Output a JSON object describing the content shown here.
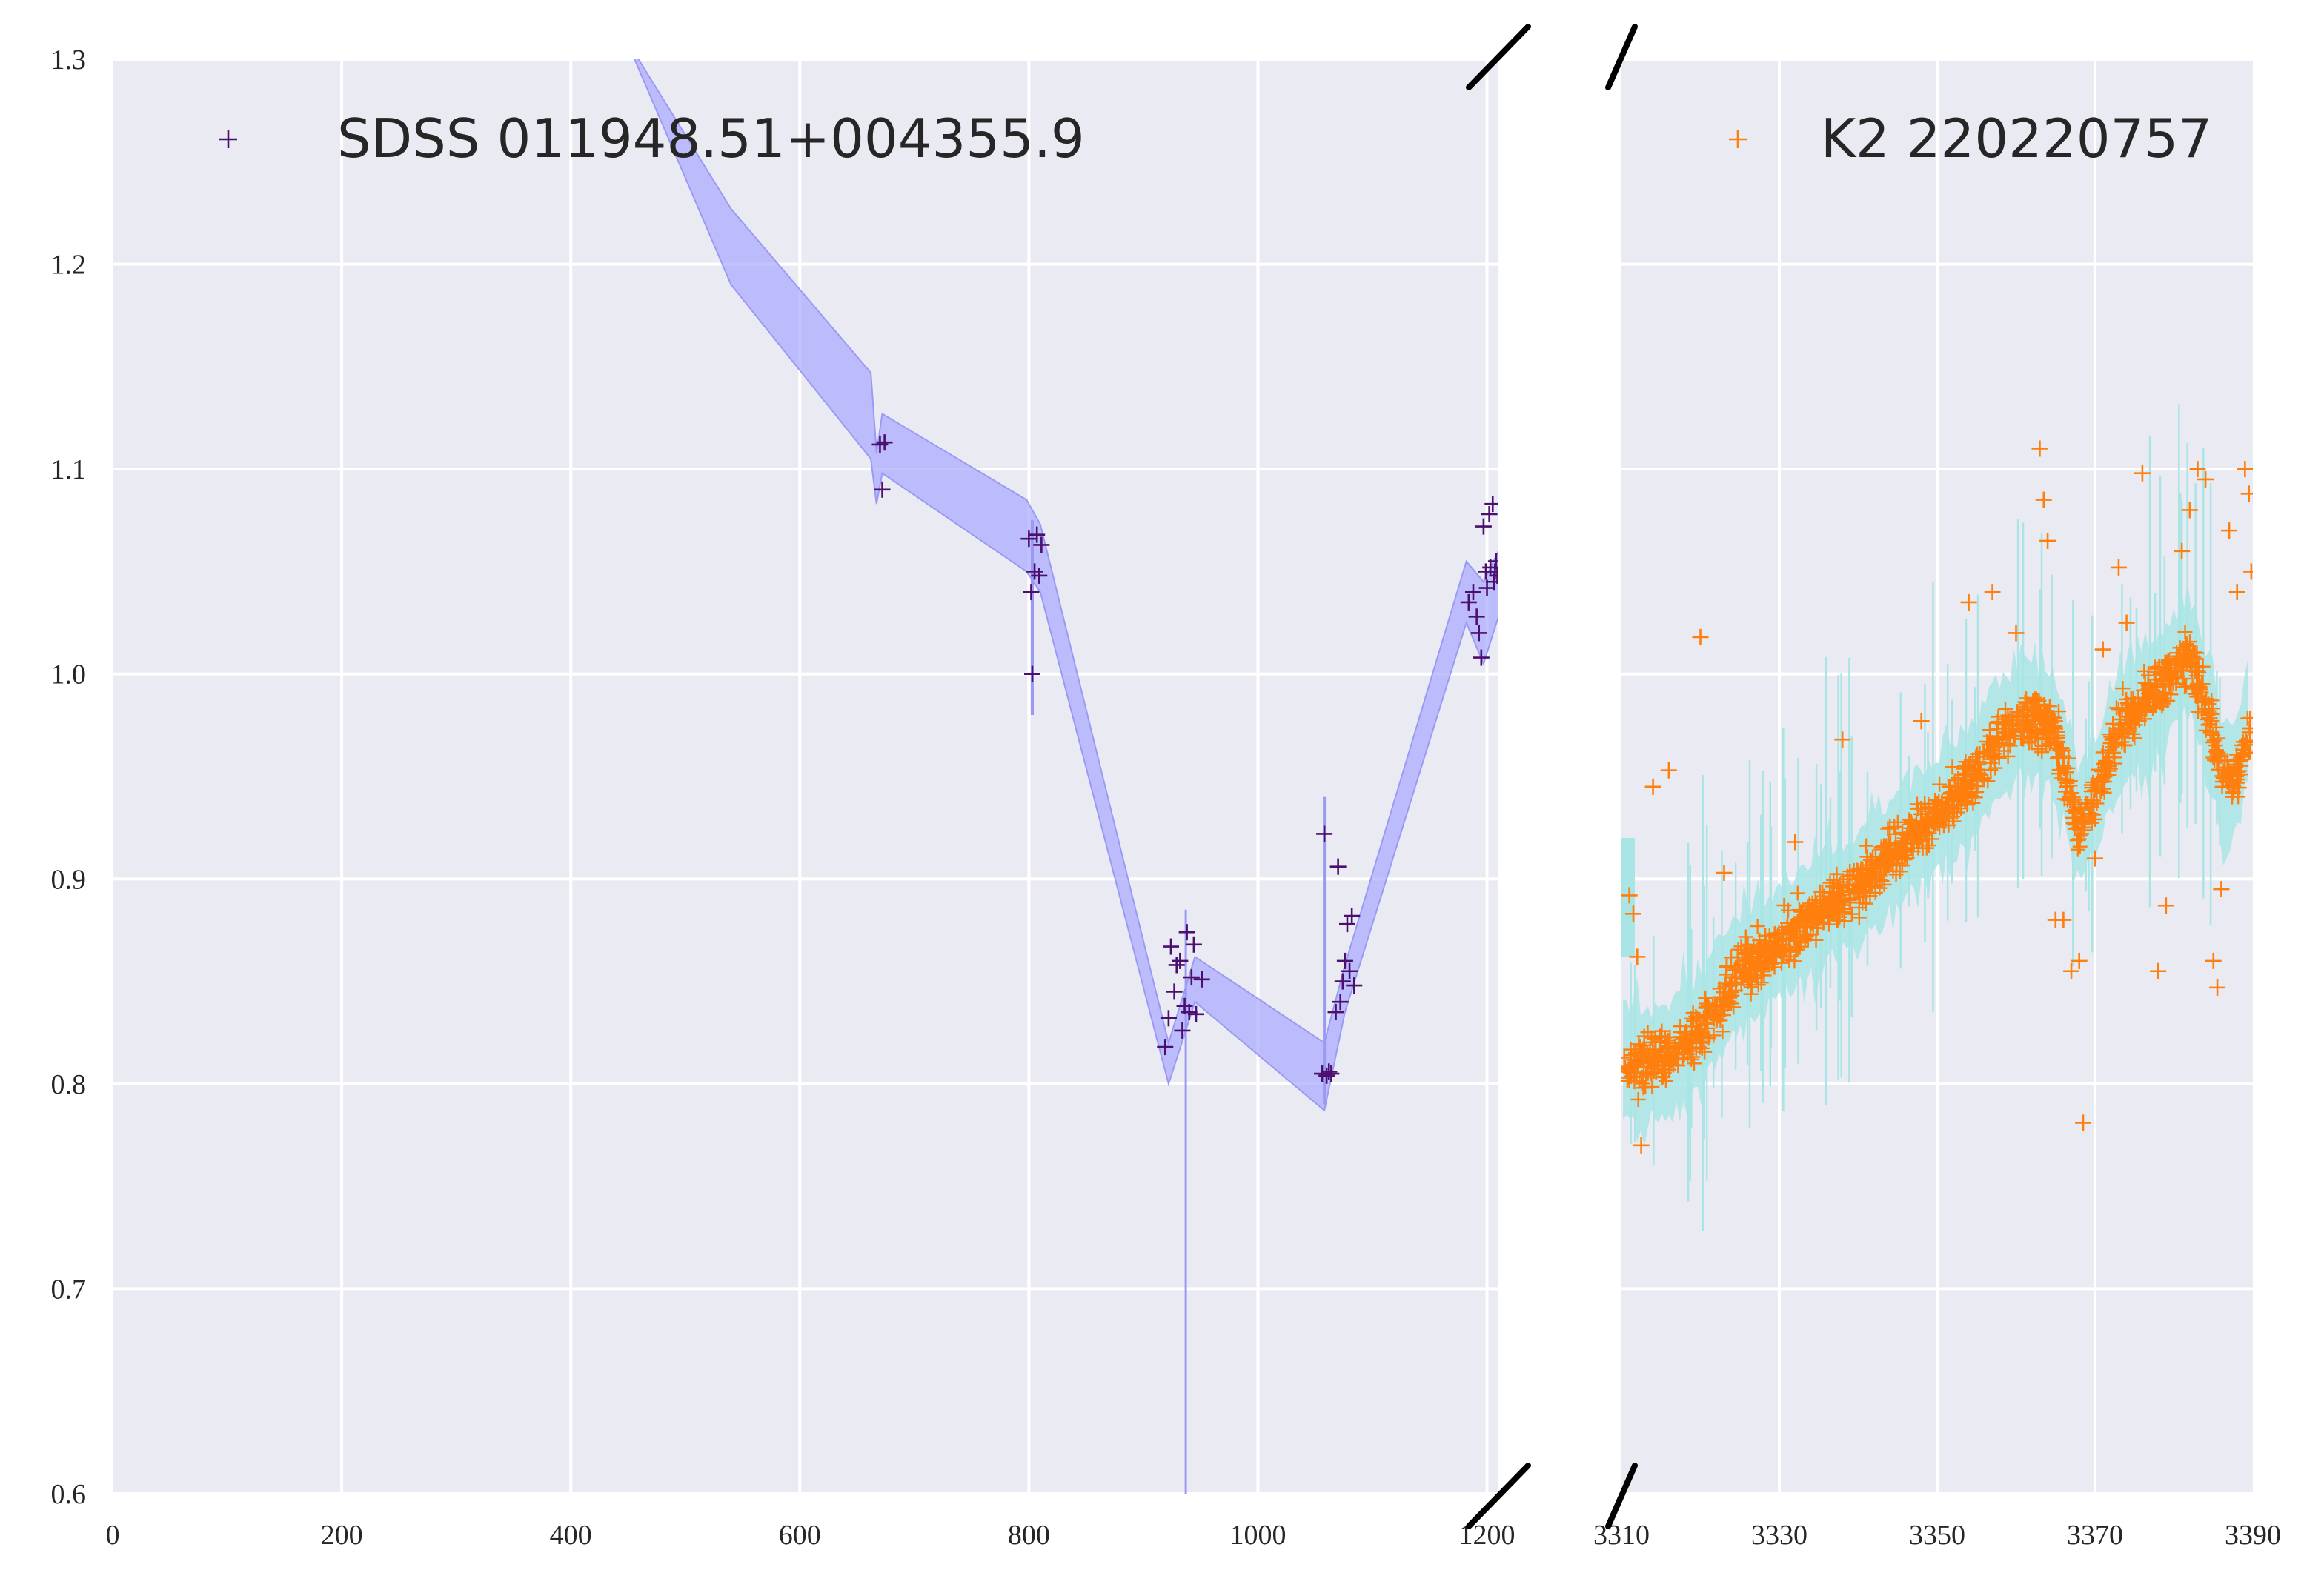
{
  "chart_data": [
    {
      "type": "scatter",
      "panel": "left",
      "xlim": [
        0,
        1210
      ],
      "ylim": [
        0.6,
        1.3
      ],
      "x_ticks": [
        "0",
        "200",
        "400",
        "600",
        "800",
        "1000",
        "1200"
      ],
      "y_ticks": [
        "0.6",
        "0.7",
        "0.8",
        "0.9",
        "1.0",
        "1.1",
        "1.2",
        "1.3"
      ],
      "grid": true,
      "legend_position": "top-left",
      "series": [
        {
          "name": "SDSS 011948.51+004355.9",
          "color": "#4b0f6e",
          "marker": "+",
          "points": [
            [
              670,
              1.112
            ],
            [
              672,
              1.09
            ],
            [
              674,
              1.113
            ],
            [
              800,
              1.066
            ],
            [
              802,
              1.04
            ],
            [
              803,
              1.0
            ],
            [
              805,
              1.05
            ],
            [
              807,
              1.068
            ],
            [
              809,
              1.048
            ],
            [
              811,
              1.063
            ],
            [
              919,
              0.818
            ],
            [
              922,
              0.832
            ],
            [
              924,
              0.867
            ],
            [
              927,
              0.845
            ],
            [
              929,
              0.858
            ],
            [
              932,
              0.86
            ],
            [
              934,
              0.826
            ],
            [
              936,
              0.838
            ],
            [
              938,
              0.874
            ],
            [
              940,
              0.835
            ],
            [
              942,
              0.852
            ],
            [
              944,
              0.868
            ],
            [
              946,
              0.834
            ],
            [
              951,
              0.851
            ],
            [
              1056,
              0.805
            ],
            [
              1058,
              0.922
            ],
            [
              1060,
              0.804
            ],
            [
              1062,
              0.806
            ],
            [
              1064,
              0.805
            ],
            [
              1068,
              0.835
            ],
            [
              1070,
              0.906
            ],
            [
              1072,
              0.84
            ],
            [
              1074,
              0.85
            ],
            [
              1076,
              0.86
            ],
            [
              1078,
              0.878
            ],
            [
              1080,
              0.855
            ],
            [
              1082,
              0.882
            ],
            [
              1084,
              0.848
            ],
            [
              1184,
              1.035
            ],
            [
              1188,
              1.04
            ],
            [
              1191,
              1.028
            ],
            [
              1193,
              1.02
            ],
            [
              1195,
              1.008
            ],
            [
              1197,
              1.072
            ],
            [
              1199,
              1.05
            ],
            [
              1200,
              1.042
            ],
            [
              1202,
              1.078
            ],
            [
              1203,
              1.052
            ],
            [
              1205,
              1.083
            ],
            [
              1206,
              1.045
            ],
            [
              1207,
              1.05
            ],
            [
              1208,
              1.055
            ],
            [
              1209,
              1.048
            ]
          ]
        }
      ],
      "band": {
        "color": "#aaaaff",
        "upper": [
          [
            448,
            1.31
          ],
          [
            540,
            1.227
          ],
          [
            662,
            1.147
          ],
          [
            667,
            1.108
          ],
          [
            672,
            1.127
          ],
          [
            798,
            1.085
          ],
          [
            810,
            1.073
          ],
          [
            922,
            0.82
          ],
          [
            945,
            0.862
          ],
          [
            1058,
            0.82
          ],
          [
            1076,
            0.858
          ],
          [
            1182,
            1.055
          ],
          [
            1197,
            1.045
          ],
          [
            1210,
            1.06
          ]
        ],
        "lower": [
          [
            448,
            1.31
          ],
          [
            540,
            1.19
          ],
          [
            662,
            1.105
          ],
          [
            667,
            1.083
          ],
          [
            672,
            1.098
          ],
          [
            798,
            1.05
          ],
          [
            810,
            1.04
          ],
          [
            922,
            0.8
          ],
          [
            945,
            0.84
          ],
          [
            1058,
            0.787
          ],
          [
            1076,
            0.835
          ],
          [
            1182,
            1.025
          ],
          [
            1197,
            1.005
          ],
          [
            1210,
            1.028
          ]
        ]
      }
    },
    {
      "type": "scatter",
      "panel": "right",
      "xlim": [
        3310,
        3390
      ],
      "ylim": [
        0.6,
        1.3
      ],
      "x_ticks": [
        "3310",
        "3330",
        "3350",
        "3370",
        "3390"
      ],
      "y_ticks": [
        "0.6",
        "0.7",
        "0.8",
        "0.9",
        "1.0",
        "1.1",
        "1.2",
        "1.3"
      ],
      "grid": true,
      "legend_position": "top-right",
      "series": [
        {
          "name": "K2 220220757",
          "color": "#ff7f0e",
          "marker": "+",
          "trend": [
            [
              3310,
              0.81
            ],
            [
              3315,
              0.81
            ],
            [
              3320,
              0.825
            ],
            [
              3325,
              0.855
            ],
            [
              3330,
              0.868
            ],
            [
              3335,
              0.885
            ],
            [
              3340,
              0.895
            ],
            [
              3345,
              0.915
            ],
            [
              3350,
              0.93
            ],
            [
              3355,
              0.95
            ],
            [
              3358,
              0.97
            ],
            [
              3362,
              0.98
            ],
            [
              3365,
              0.97
            ],
            [
              3368,
              0.925
            ],
            [
              3370,
              0.94
            ],
            [
              3373,
              0.975
            ],
            [
              3376,
              0.985
            ],
            [
              3380,
              1.0
            ],
            [
              3382,
              1.01
            ],
            [
              3384,
              0.985
            ],
            [
              3386,
              0.95
            ],
            [
              3388,
              0.95
            ],
            [
              3389,
              0.97
            ]
          ],
          "scatter": 0.012,
          "outliers": [
            [
              3311,
              0.892
            ],
            [
              3311.5,
              0.883
            ],
            [
              3312,
              0.862
            ],
            [
              3312.5,
              0.77
            ],
            [
              3314,
              0.945
            ],
            [
              3316,
              0.953
            ],
            [
              3320,
              1.018
            ],
            [
              3323,
              0.903
            ],
            [
              3332,
              0.918
            ],
            [
              3338,
              0.968
            ],
            [
              3344,
              0.925
            ],
            [
              3348,
              0.977
            ],
            [
              3354,
              1.035
            ],
            [
              3357,
              1.04
            ],
            [
              3360,
              1.02
            ],
            [
              3363,
              1.11
            ],
            [
              3363.5,
              1.085
            ],
            [
              3364,
              1.065
            ],
            [
              3365,
              0.88
            ],
            [
              3366,
              0.88
            ],
            [
              3367,
              0.855
            ],
            [
              3368,
              0.86
            ],
            [
              3368.5,
              0.781
            ],
            [
              3370,
              0.91
            ],
            [
              3371,
              1.012
            ],
            [
              3373,
              1.052
            ],
            [
              3374,
              1.025
            ],
            [
              3376,
              1.098
            ],
            [
              3378,
              0.855
            ],
            [
              3379,
              0.887
            ],
            [
              3381,
              1.06
            ],
            [
              3382,
              1.08
            ],
            [
              3383,
              1.1
            ],
            [
              3384,
              1.095
            ],
            [
              3385,
              0.86
            ],
            [
              3385.5,
              0.847
            ],
            [
              3386,
              0.895
            ],
            [
              3387,
              1.07
            ],
            [
              3388,
              1.04
            ],
            [
              3389,
              1.1
            ],
            [
              3389.5,
              1.088
            ],
            [
              3389.8,
              1.05
            ]
          ]
        }
      ],
      "band": {
        "color": "#a9e5e5",
        "half_width": 0.022
      }
    }
  ]
}
